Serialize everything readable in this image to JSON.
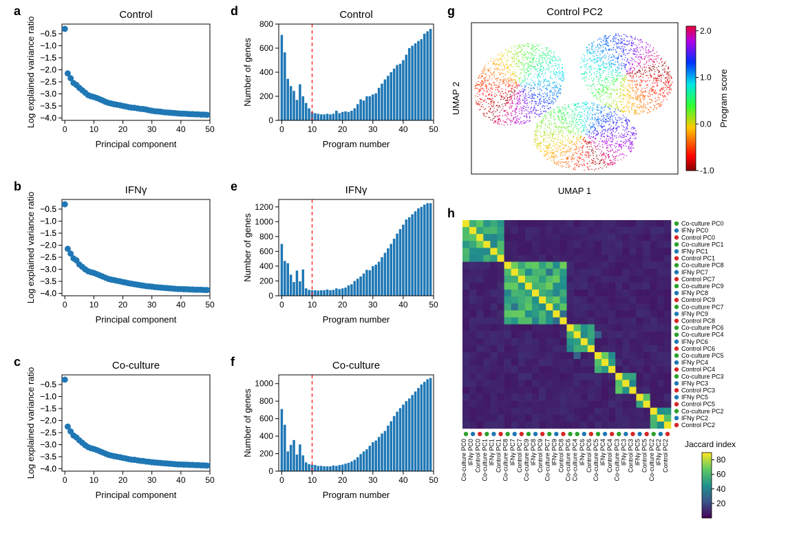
{
  "background_color": "#ffffff",
  "accent_color": "#1f77b4",
  "dash_color": "#ff3030",
  "letters": {
    "a": "a",
    "b": "b",
    "c": "c",
    "d": "d",
    "e": "e",
    "f": "f",
    "g": "g",
    "h": "h"
  },
  "scree": {
    "marker_color": "#1f77b4",
    "marker_size": 4.5,
    "xlim": [
      -1,
      50
    ],
    "ylim": [
      -4.1,
      -0.1
    ],
    "xticks": [
      0,
      10,
      20,
      30,
      40,
      50
    ],
    "yticks_minor_step": 0.5,
    "yticks_labeled": [
      -4,
      -3,
      -2,
      -1
    ],
    "xlabel": "Principal component",
    "ylabel": "Log explained variance ratio",
    "panels": {
      "a": {
        "title": "Control",
        "y": [
          -0.3,
          -2.15,
          -2.35,
          -2.55,
          -2.63,
          -2.75,
          -2.85,
          -2.95,
          -3.05,
          -3.1,
          -3.13,
          -3.17,
          -3.22,
          -3.27,
          -3.33,
          -3.37,
          -3.4,
          -3.43,
          -3.45,
          -3.47,
          -3.5,
          -3.52,
          -3.55,
          -3.57,
          -3.58,
          -3.6,
          -3.62,
          -3.63,
          -3.65,
          -3.68,
          -3.7,
          -3.72,
          -3.73,
          -3.74,
          -3.76,
          -3.77,
          -3.78,
          -3.79,
          -3.8,
          -3.81,
          -3.82,
          -3.82,
          -3.83,
          -3.84,
          -3.84,
          -3.85,
          -3.85,
          -3.86,
          -3.86,
          -3.87
        ]
      },
      "b": {
        "title": "IFNγ",
        "y": [
          -0.3,
          -2.15,
          -2.35,
          -2.55,
          -2.63,
          -2.8,
          -2.9,
          -3.0,
          -3.08,
          -3.12,
          -3.15,
          -3.2,
          -3.25,
          -3.3,
          -3.35,
          -3.4,
          -3.43,
          -3.45,
          -3.48,
          -3.5,
          -3.53,
          -3.55,
          -3.58,
          -3.6,
          -3.62,
          -3.64,
          -3.66,
          -3.68,
          -3.7,
          -3.71,
          -3.72,
          -3.74,
          -3.75,
          -3.76,
          -3.77,
          -3.78,
          -3.79,
          -3.8,
          -3.81,
          -3.82,
          -3.82,
          -3.83,
          -3.83,
          -3.84,
          -3.84,
          -3.85,
          -3.85,
          -3.85,
          -3.86,
          -3.86
        ]
      },
      "c": {
        "title": "Co-culture",
        "y": [
          -0.3,
          -2.25,
          -2.45,
          -2.62,
          -2.7,
          -2.82,
          -2.92,
          -3.02,
          -3.1,
          -3.15,
          -3.18,
          -3.22,
          -3.27,
          -3.32,
          -3.37,
          -3.42,
          -3.45,
          -3.48,
          -3.5,
          -3.52,
          -3.55,
          -3.57,
          -3.6,
          -3.62,
          -3.63,
          -3.65,
          -3.67,
          -3.68,
          -3.7,
          -3.71,
          -3.73,
          -3.74,
          -3.75,
          -3.76,
          -3.77,
          -3.78,
          -3.79,
          -3.8,
          -3.81,
          -3.82,
          -3.82,
          -3.83,
          -3.83,
          -3.84,
          -3.84,
          -3.85,
          -3.85,
          -3.86,
          -3.86,
          -3.87
        ]
      }
    }
  },
  "hist": {
    "bar_color": "#1f77b4",
    "dash_line_x": 10,
    "xlim": [
      -1,
      50
    ],
    "xticks": [
      0,
      10,
      20,
      30,
      40,
      50
    ],
    "xlabel": "Program number",
    "ylabel": "Number of genes",
    "bar_width": 0.8,
    "panels": {
      "d": {
        "title": "Control",
        "ymax": 800,
        "ystep": 200,
        "y": [
          710,
          565,
          345,
          285,
          245,
          170,
          300,
          200,
          145,
          100,
          70,
          60,
          55,
          50,
          50,
          55,
          50,
          55,
          80,
          60,
          70,
          75,
          70,
          80,
          100,
          135,
          175,
          165,
          200,
          200,
          215,
          225,
          270,
          305,
          340,
          370,
          400,
          430,
          460,
          470,
          500,
          545,
          600,
          620,
          640,
          660,
          675,
          720,
          740,
          760
        ]
      },
      "e": {
        "title": "IFNγ",
        "ymax": 1300,
        "ystep": 200,
        "y": [
          700,
          470,
          440,
          285,
          185,
          340,
          195,
          355,
          100,
          80,
          75,
          75,
          70,
          75,
          75,
          85,
          75,
          80,
          100,
          90,
          100,
          110,
          140,
          155,
          200,
          230,
          260,
          300,
          350,
          345,
          400,
          420,
          460,
          520,
          580,
          640,
          700,
          770,
          840,
          900,
          960,
          1030,
          1060,
          1100,
          1140,
          1180,
          1200,
          1230,
          1250,
          1250
        ]
      },
      "f": {
        "title": "Co-culture",
        "ymax": 1100,
        "ystep": 200,
        "y": [
          710,
          530,
          225,
          300,
          355,
          190,
          305,
          180,
          100,
          80,
          75,
          70,
          60,
          60,
          55,
          55,
          55,
          65,
          60,
          70,
          75,
          85,
          95,
          110,
          130,
          160,
          195,
          225,
          250,
          290,
          330,
          350,
          390,
          430,
          460,
          520,
          570,
          630,
          680,
          720,
          760,
          800,
          830,
          870,
          910,
          950,
          990,
          1020,
          1050,
          1065
        ]
      }
    }
  },
  "umap": {
    "title": "Control PC2",
    "xlabel": "UMAP 1",
    "ylabel": "UMAP 2",
    "border_color": "#000000",
    "cbar_title": "Program score",
    "cbar_ticks": [
      -1.0,
      0.0,
      1.0,
      2.0
    ],
    "cbar_min": -1.0,
    "cbar_max": 2.1
  },
  "heatmap": {
    "cbar_title": "Jaccard index",
    "cbar_ticks": [
      20,
      40,
      60,
      80
    ],
    "cbar_min": 0,
    "cbar_max": 90,
    "colors": {
      "Co-culture": "#2ca02c",
      "IFNγ": "#1f77b4",
      "Control": "#d62728"
    },
    "labels": [
      "Co-culture PC0",
      "IFNγ PC0",
      "Control PC0",
      "Co-culture PC1",
      "IFNγ PC1",
      "Control PC1",
      "Co-culture PC8",
      "IFNγ PC7",
      "Control PC7",
      "Co-culture PC9",
      "IFNγ PC8",
      "Control PC9",
      "Co-culture PC7",
      "IFNγ PC9",
      "Control PC8",
      "Co-culture PC6",
      "Co-culture PC4",
      "IFNγ PC6",
      "Control PC6",
      "Co-culture PC5",
      "IFNγ PC4",
      "Control PC4",
      "Co-culture PC3",
      "IFNγ PC3",
      "Control PC3",
      "IFNγ PC5",
      "Control PC5",
      "Co-culture PC2",
      "IFNγ PC2",
      "Control PC2"
    ],
    "groups": [
      [
        0,
        5
      ],
      [
        6,
        14
      ],
      [
        15,
        18
      ],
      [
        19,
        21
      ],
      [
        22,
        24
      ],
      [
        25,
        26
      ],
      [
        27,
        29
      ]
    ],
    "off_block_high": [
      [
        7,
        12,
        35
      ],
      [
        12,
        7,
        35
      ],
      [
        13,
        14,
        32
      ],
      [
        14,
        13,
        32
      ],
      [
        16,
        19,
        28
      ],
      [
        19,
        16,
        28
      ]
    ]
  }
}
